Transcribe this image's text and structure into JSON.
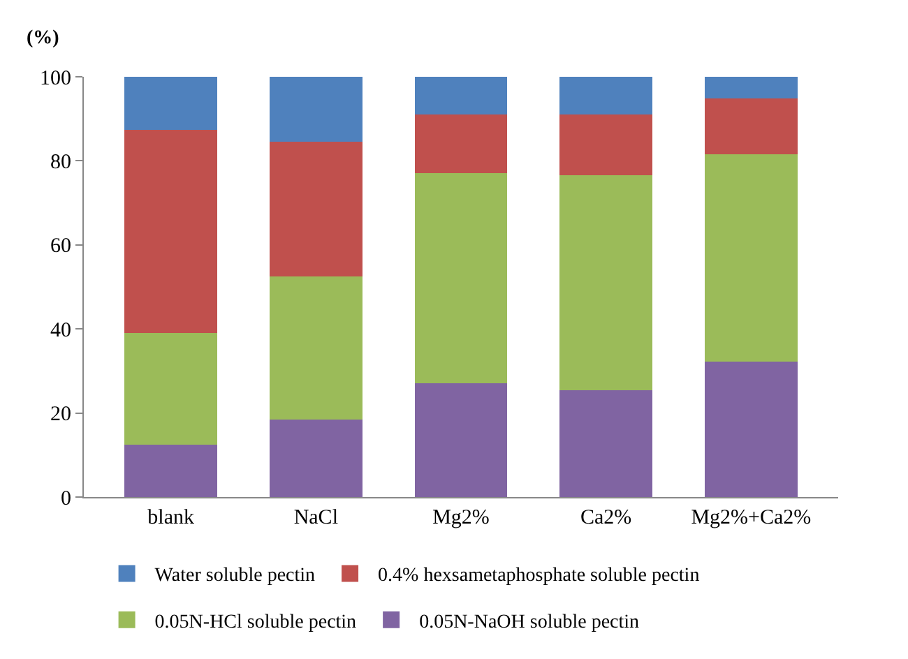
{
  "chart_data": {
    "type": "bar",
    "stacked": true,
    "ylabel": "(%)",
    "categories": [
      "blank",
      "NaCl",
      "Mg2%",
      "Ca2%",
      "Mg2%+Ca2%"
    ],
    "series": [
      {
        "name": "0.05N-NaOH soluble pectin",
        "color": "#8064a2",
        "values": [
          12.5,
          18.5,
          27,
          25.5,
          32.3
        ]
      },
      {
        "name": "0.05N-HCl soluble pectin",
        "color": "#9bbb59",
        "values": [
          26.5,
          34,
          50,
          51,
          49.2
        ]
      },
      {
        "name": "0.4% hexsametaphosphate soluble pectin",
        "color": "#c0504d",
        "values": [
          48.3,
          32,
          14,
          14.5,
          13.3
        ]
      },
      {
        "name": "Water soluble pectin",
        "color": "#4f81bd",
        "values": [
          12.7,
          15.5,
          9,
          9,
          5.2
        ]
      }
    ],
    "ylim": [
      0,
      100
    ],
    "yticks": [
      0,
      20,
      40,
      60,
      80,
      100
    ],
    "grid": false,
    "legend": "bottom"
  }
}
